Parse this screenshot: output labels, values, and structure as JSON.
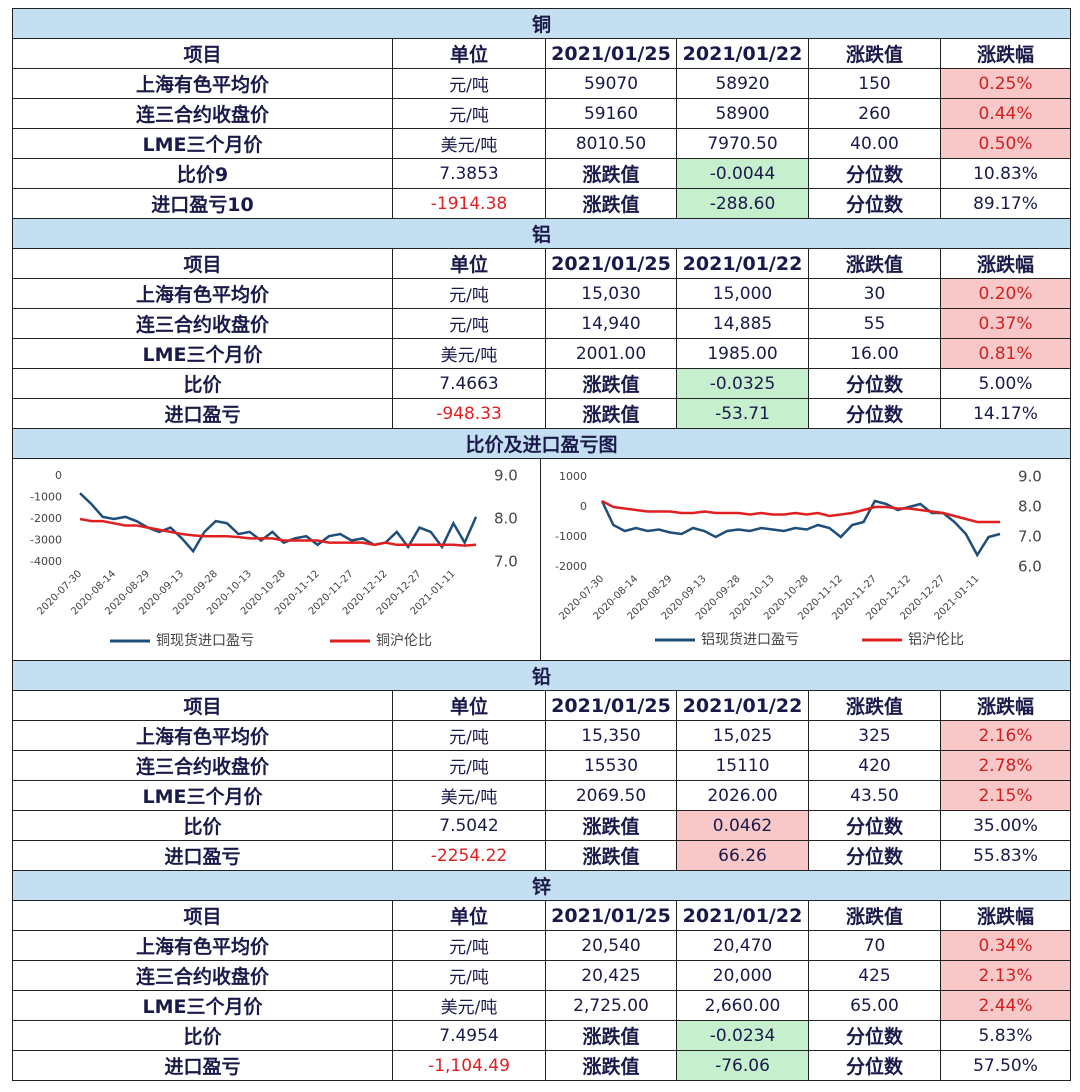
{
  "sections": [
    {
      "title": "铜",
      "header": [
        "项目",
        "单位",
        "2021/01/25",
        "2021/01/22",
        "涨跌值",
        "涨跌幅"
      ],
      "change_color": "#c6efce",
      "rows": [
        [
          "上海有色平均价",
          "元/吨",
          "59070",
          "58920",
          "150",
          "0.25%"
        ],
        [
          "连三合约收盘价",
          "元/吨",
          "59160",
          "58900",
          "260",
          "0.44%"
        ],
        [
          "LME三个月价",
          "美元/吨",
          "8010.50",
          "7970.50",
          "40.00",
          "0.50%"
        ],
        [
          "比价9",
          "7.3853",
          "涨跌值",
          "-0.0044",
          "分位数",
          "10.83%"
        ],
        [
          "进口盈亏10",
          "-1914.38",
          "涨跌值",
          "-288.60",
          "分位数",
          "89.17%"
        ]
      ]
    },
    {
      "title": "铝",
      "header": [
        "项目",
        "单位",
        "2021/01/25",
        "2021/01/22",
        "涨跌值",
        "涨跌幅"
      ],
      "change_color": "#c6efce",
      "rows": [
        [
          "上海有色平均价",
          "元/吨",
          "15,030",
          "15,000",
          "30",
          "0.20%"
        ],
        [
          "连三合约收盘价",
          "元/吨",
          "14,940",
          "14,885",
          "55",
          "0.37%"
        ],
        [
          "LME三个月价",
          "美元/吨",
          "2001.00",
          "1985.00",
          "16.00",
          "0.81%"
        ],
        [
          "比价",
          "7.4663",
          "涨跌值",
          "-0.0325",
          "分位数",
          "5.00%"
        ],
        [
          "进口盈亏",
          "-948.33",
          "涨跌值",
          "-53.71",
          "分位数",
          "14.17%"
        ]
      ]
    },
    {
      "title": "铅",
      "header": [
        "项目",
        "单位",
        "2021/01/25",
        "2021/01/22",
        "涨跌值",
        "涨跌幅"
      ],
      "change_color": "#f8c8c8",
      "rows": [
        [
          "上海有色平均价",
          "元/吨",
          "15,350",
          "15,025",
          "325",
          "2.16%"
        ],
        [
          "连三合约收盘价",
          "元/吨",
          "15530",
          "15110",
          "420",
          "2.78%"
        ],
        [
          "LME三个月价",
          "美元/吨",
          "2069.50",
          "2026.00",
          "43.50",
          "2.15%"
        ],
        [
          "比价",
          "7.5042",
          "涨跌值",
          "0.0462",
          "分位数",
          "35.00%"
        ],
        [
          "进口盈亏",
          "-2254.22",
          "涨跌值",
          "66.26",
          "分位数",
          "55.83%"
        ]
      ]
    },
    {
      "title": "锌",
      "header": [
        "项目",
        "单位",
        "2021/01/25",
        "2021/01/22",
        "涨跌值",
        "涨跌幅"
      ],
      "change_color": "#c6efce",
      "rows": [
        [
          "上海有色平均价",
          "元/吨",
          "20,540",
          "20,470",
          "70",
          "0.34%"
        ],
        [
          "连三合约收盘价",
          "元/吨",
          "20,425",
          "20,000",
          "425",
          "2.13%"
        ],
        [
          "LME三个月价",
          "美元/吨",
          "2,725.00",
          "2,660.00",
          "65.00",
          "2.44%"
        ],
        [
          "比价",
          "7.4954",
          "涨跌值",
          "-0.0234",
          "分位数",
          "5.83%"
        ],
        [
          "进口盈亏",
          "-1,104.49",
          "涨跌值",
          "-76.06",
          "分位数",
          "57.50%"
        ]
      ]
    }
  ],
  "chart_section_title": "比价及进口盈亏图",
  "chart_data": [
    {
      "type": "line",
      "categories": [
        "2020-07-30",
        null,
        null,
        "2020-08-14",
        null,
        null,
        "2020-08-29",
        null,
        null,
        "2020-09-13",
        null,
        null,
        "2020-09-28",
        null,
        null,
        "2020-10-13",
        null,
        null,
        "2020-10-28",
        null,
        null,
        "2020-11-12",
        null,
        null,
        "2020-11-27",
        null,
        null,
        "2020-12-12",
        null,
        null,
        "2020-12-27",
        null,
        null,
        "2021-01-11",
        null,
        null
      ],
      "ylim": [
        -4000,
        0
      ],
      "yticks": [
        0,
        -1000,
        -2000,
        -3000,
        -4000
      ],
      "y2lim": [
        7,
        9
      ],
      "y2ticks": [
        {
          "value": 9,
          "label": "9.0"
        },
        {
          "value": 8,
          "label": "8.0"
        },
        {
          "value": 7,
          "label": "7.0"
        }
      ],
      "series": [
        {
          "name": "铜现货进口盈亏",
          "color": "#1f4e79",
          "values": [
            -800,
            -1300,
            -1900,
            -2000,
            -1900,
            -2100,
            -2400,
            -2600,
            -2400,
            -2900,
            -3500,
            -2600,
            -2100,
            -2200,
            -2700,
            -2600,
            -3000,
            -2600,
            -3100,
            -2900,
            -2800,
            -3200,
            -2800,
            -2700,
            -3000,
            -2900,
            -3200,
            -3100,
            -2600,
            -3300,
            -2400,
            -2600,
            -3300,
            -2200,
            -3100,
            -1900
          ]
        },
        {
          "name": "铜沪伦比",
          "color": "#e02020",
          "axis": "y2",
          "values": [
            8.0,
            7.95,
            7.95,
            7.9,
            7.85,
            7.85,
            7.8,
            7.75,
            7.7,
            7.65,
            7.62,
            7.6,
            7.6,
            7.6,
            7.58,
            7.55,
            7.55,
            7.55,
            7.5,
            7.5,
            7.5,
            7.5,
            7.45,
            7.45,
            7.45,
            7.45,
            7.4,
            7.45,
            7.4,
            7.4,
            7.4,
            7.4,
            7.4,
            7.4,
            7.38,
            7.4
          ]
        }
      ]
    },
    {
      "type": "line",
      "categories": [
        "2020-07-30",
        null,
        null,
        "2020-08-14",
        null,
        null,
        "2020-08-29",
        null,
        null,
        "2020-09-13",
        null,
        null,
        "2020-09-28",
        null,
        null,
        "2020-10-13",
        null,
        null,
        "2020-10-28",
        null,
        null,
        "2020-11-12",
        null,
        null,
        "2020-11-27",
        null,
        null,
        "2020-12-12",
        null,
        null,
        "2020-12-27",
        null,
        null,
        "2021-01-11",
        null,
        null
      ],
      "ylim": [
        -2000,
        1000
      ],
      "yticks": [
        1000,
        0,
        -1000,
        -2000
      ],
      "y2lim": [
        6,
        9
      ],
      "y2ticks": [
        {
          "value": 9,
          "label": "9.0"
        },
        {
          "value": 8,
          "label": "8.0"
        },
        {
          "value": 7,
          "label": "7.0"
        },
        {
          "value": 6,
          "label": "6.0"
        }
      ],
      "series": [
        {
          "name": "铝现货进口盈亏",
          "color": "#1f4e79",
          "values": [
            200,
            -600,
            -800,
            -700,
            -800,
            -750,
            -850,
            -900,
            -700,
            -800,
            -1000,
            -800,
            -750,
            -800,
            -700,
            -750,
            -800,
            -700,
            -750,
            -600,
            -700,
            -1000,
            -600,
            -500,
            200,
            100,
            -100,
            0,
            100,
            -200,
            -200,
            -500,
            -900,
            -1600,
            -1000,
            -900
          ]
        },
        {
          "name": "铝沪伦比",
          "color": "#e02020",
          "axis": "y2",
          "values": [
            8.2,
            8.0,
            7.95,
            7.9,
            7.85,
            7.85,
            7.85,
            7.8,
            7.8,
            7.85,
            7.8,
            7.8,
            7.8,
            7.75,
            7.8,
            7.75,
            7.75,
            7.8,
            7.75,
            7.8,
            7.7,
            7.75,
            7.8,
            7.9,
            8.0,
            8.0,
            7.95,
            7.95,
            7.9,
            7.85,
            7.8,
            7.7,
            7.6,
            7.5,
            7.5,
            7.5
          ]
        }
      ]
    }
  ]
}
